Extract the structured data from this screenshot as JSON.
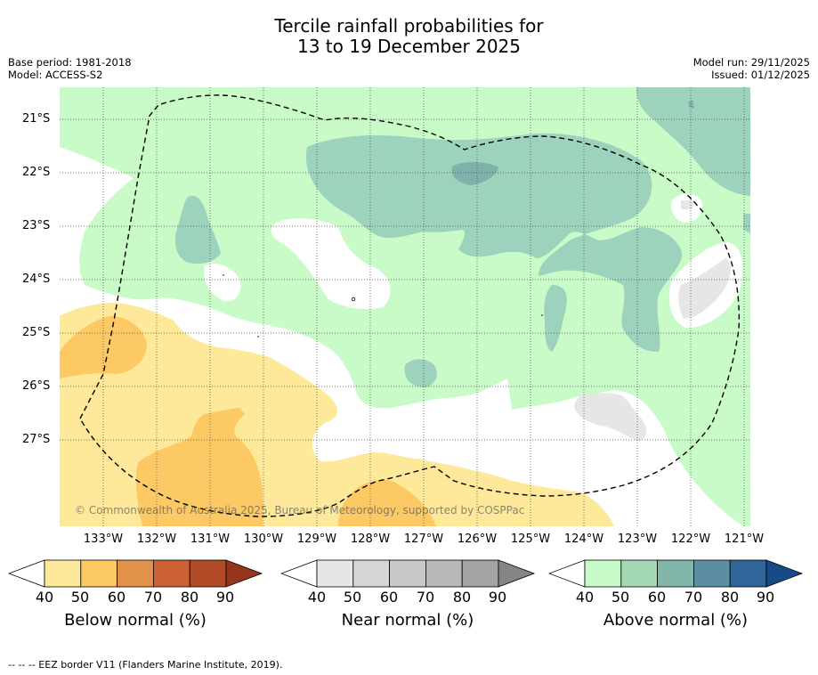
{
  "title_line1": "Tercile rainfall probabilities for",
  "title_line2": "13 to 19 December 2025",
  "base_period": "Base period: 1981-2018",
  "model": "Model: ACCESS-S2",
  "model_run": "Model run: 29/11/2025",
  "issued": "Issued: 01/12/2025",
  "copyright": "© Commonwealth of Australia 2025, Bureau of Meteorology, supported by COSPPac",
  "footnote": "--  --  -- EEZ border V11 (Flanders Marine Institute, 2019).",
  "lat_labels": [
    "21°S",
    "22°S",
    "23°S",
    "24°S",
    "25°S",
    "26°S",
    "27°S"
  ],
  "lon_labels": [
    "133°W",
    "132°W",
    "131°W",
    "130°W",
    "129°W",
    "128°W",
    "127°W",
    "126°W",
    "125°W",
    "124°W",
    "123°W",
    "122°W",
    "121°W"
  ],
  "colorbars": [
    {
      "label": "Below normal (%)",
      "ticks": [
        "40",
        "50",
        "60",
        "70",
        "80",
        "90"
      ],
      "colors": [
        "#fee99a",
        "#fdc964",
        "#e2914a",
        "#cc6133",
        "#b24c28",
        "#96351e"
      ]
    },
    {
      "label": "Near normal (%)",
      "ticks": [
        "40",
        "50",
        "60",
        "70",
        "80",
        "90"
      ],
      "colors": [
        "#e6e6e6",
        "#d6d6d6",
        "#c8c8c8",
        "#b8b8b8",
        "#a4a4a4",
        "#858585"
      ]
    },
    {
      "label": "Above normal (%)",
      "ticks": [
        "40",
        "50",
        "60",
        "70",
        "80",
        "90"
      ],
      "colors": [
        "#c9fbc9",
        "#a4d8b4",
        "#82b6ab",
        "#5a8ea0",
        "#2f6598",
        "#174a86"
      ]
    }
  ]
}
